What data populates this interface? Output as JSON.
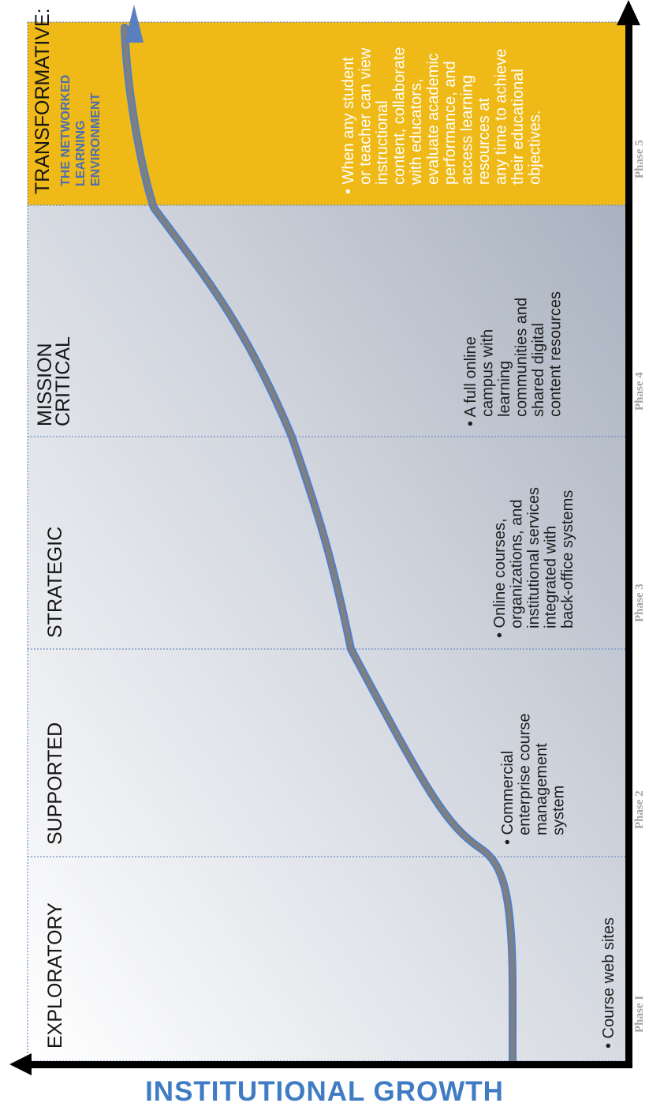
{
  "diagram": {
    "stages": [
      {
        "title_lines": [
          "EXPLORATORY"
        ],
        "subtitle_lines": [],
        "description_lines": [
          "• Course web sites"
        ],
        "phase": "Phase I"
      },
      {
        "title_lines": [
          "SUPPORTED"
        ],
        "subtitle_lines": [],
        "description_lines": [
          "• Commercial",
          "enterprise course",
          "management",
          "system"
        ],
        "phase": "Phase 2"
      },
      {
        "title_lines": [
          "STRATEGIC"
        ],
        "subtitle_lines": [],
        "description_lines": [
          "• Online courses,",
          "organizations, and",
          "institutional services",
          "integrated with",
          "back-office systems"
        ],
        "phase": "Phase 3"
      },
      {
        "title_lines": [
          "MISSION",
          "CRITICAL"
        ],
        "subtitle_lines": [],
        "description_lines": [
          "• A full online",
          "campus with",
          "learning",
          "communities and",
          "shared digital",
          "content resources"
        ],
        "phase": "Phase 4"
      },
      {
        "title_lines": [
          "TRANSFORMATIVE:"
        ],
        "subtitle_lines": [
          "THE NETWORKED",
          "LEARNING",
          "ENVIRONMENT"
        ],
        "description_lines": [
          "• When any student",
          "or teacher can view",
          "instructional",
          "content, collaborate",
          "with educators,",
          "evaluate academic",
          "performance, and",
          "access learning",
          "resources at",
          "any time to achieve",
          "their educational",
          "objectives."
        ],
        "phase": "Phase 5"
      }
    ],
    "axis_label": "INSTITUTIONAL GROWTH",
    "colors": {
      "highlight_band": "#efb917",
      "subtitle": "#4a6fb3",
      "axis_label": "#3f7cc3",
      "curve": "#7f7f7f",
      "curve_edge": "#4f7fc9",
      "axis": "#000000"
    }
  }
}
